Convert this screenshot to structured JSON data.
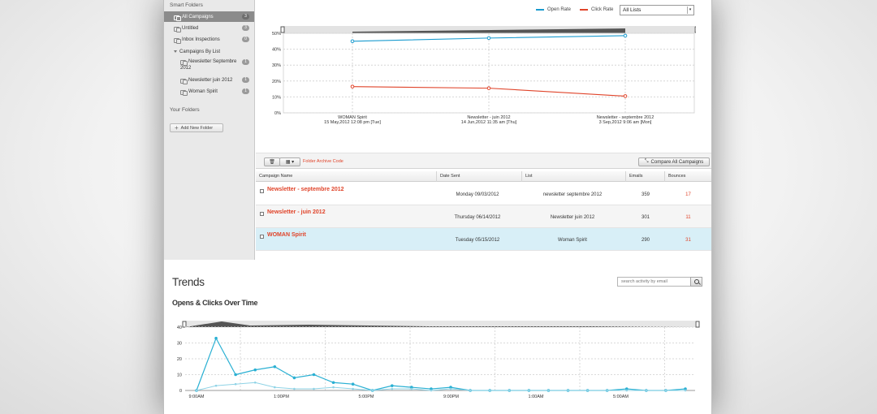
{
  "sidebar": {
    "smart_folders_heading": "Smart Folders",
    "items": [
      {
        "label": "All Campaigns",
        "count": "3"
      },
      {
        "label": "Untitled",
        "count": "3"
      },
      {
        "label": "Inbox Inspections",
        "count": "0"
      },
      {
        "label": "Campaigns By List"
      },
      {
        "label": "Newsletter Septembre",
        "label2": "2012",
        "count": "1"
      },
      {
        "label": "Newsletter juin 2012",
        "count": "1"
      },
      {
        "label": "Woman Spirit",
        "count": "1"
      }
    ],
    "your_folders_heading": "Your Folders",
    "add_folder_label": "Add New Folder"
  },
  "legend": {
    "open_rate_label": "Open Rate",
    "click_rate_label": "Click Rate",
    "list_select_value": "All Lists"
  },
  "colors": {
    "open_rate": "#1a9bcf",
    "click_rate": "#e0442a",
    "trend_opens": "#2ab0d3",
    "trend_clicks": "#8fd3e6",
    "selected_row": "#d8eff7"
  },
  "chart_data": [
    {
      "type": "line",
      "categories": [
        "WOMAN Spirit|15 May,2012 12:08 pm [Tue]",
        "Newsletter - juin 2012|14 Jun,2012 11:35 am [Thu]",
        "Newsletter - septembre 2012|3 Sep,2012 9:06 am [Mon]"
      ],
      "series": [
        {
          "name": "Open Rate",
          "values": [
            45,
            47,
            48.5
          ]
        },
        {
          "name": "Click Rate",
          "values": [
            16.5,
            15.5,
            10.5
          ]
        }
      ],
      "yticks": [
        "50%",
        "40%",
        "30%",
        "20%",
        "10%",
        "0%"
      ],
      "ylim": [
        0,
        50
      ],
      "grid": true,
      "legend": "top-right"
    },
    {
      "type": "line",
      "xticks": [
        "9:00AM",
        "1:00PM",
        "5:00PM",
        "9:00PM",
        "1:00AM",
        "5:00AM"
      ],
      "yticks": [
        "40",
        "30",
        "20",
        "10",
        "0"
      ],
      "ylim": [
        0,
        40
      ],
      "grid": true,
      "series": [
        {
          "values": [
            0,
            33,
            10,
            13,
            15,
            8,
            10,
            5,
            4,
            0,
            3,
            2,
            1,
            2,
            0,
            0,
            0,
            0,
            0,
            0,
            0,
            0,
            1,
            0,
            0,
            1
          ]
        },
        {
          "values": [
            0,
            3,
            4,
            5,
            2,
            1,
            1,
            2,
            1,
            0,
            1,
            1,
            0,
            1,
            0,
            0,
            0,
            0,
            0,
            0,
            0,
            0,
            0,
            0,
            0,
            0
          ]
        }
      ]
    }
  ],
  "toolbar": {
    "archive_label": "Folder Archive Code",
    "compare_label": "Compare All Campaigns"
  },
  "table": {
    "headers": [
      "Campaign Name",
      "Date Sent",
      "List",
      "Emails",
      "Bounces"
    ],
    "rows": [
      {
        "name": "Newsletter - septembre 2012",
        "date": "Monday 09/03/2012",
        "list": "newsletter septembre 2012",
        "emails": "359",
        "bounces": "17"
      },
      {
        "name": "Newsletter - juin 2012",
        "date": "Thursday 06/14/2012",
        "list": "Newsletter juin 2012",
        "emails": "301",
        "bounces": "11"
      },
      {
        "name": "WOMAN Spirit",
        "date": "Tuesday 05/15/2012",
        "list": "Woman Spirit",
        "emails": "290",
        "bounces": "31"
      }
    ]
  },
  "trends": {
    "title": "Trends",
    "search_placeholder": "search activity by email",
    "subtitle": "Opens & Clicks Over Time"
  }
}
